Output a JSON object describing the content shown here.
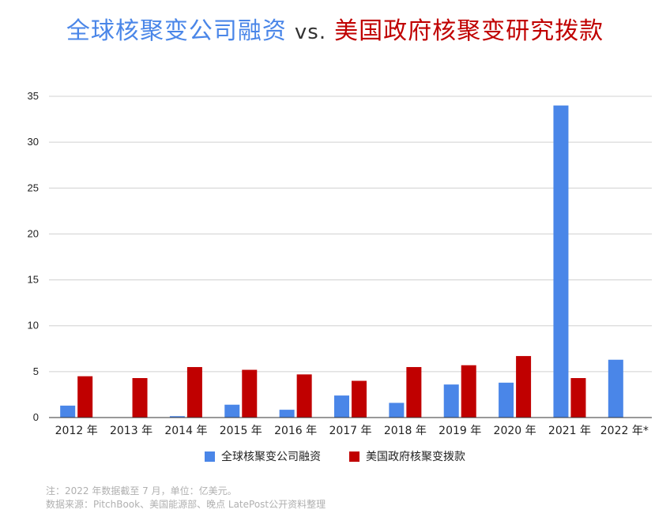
{
  "title": {
    "part1": "全球核聚变公司融资",
    "vs": "vs.",
    "part2": "美国政府核聚变研究拨款"
  },
  "colors": {
    "series1": "#4a86e8",
    "series2": "#c00000",
    "grid": "#d0d0d0",
    "axis": "#333333"
  },
  "chart_data": {
    "type": "bar",
    "title": "全球核聚变公司融资 vs. 美国政府核聚变研究拨款",
    "categories": [
      "2012 年",
      "2013 年",
      "2014 年",
      "2015 年",
      "2016 年",
      "2017 年",
      "2018 年",
      "2019 年",
      "2020 年",
      "2021 年",
      "2022 年*"
    ],
    "series": [
      {
        "name": "全球核聚变公司融资",
        "values": [
          1.3,
          0,
          0.15,
          1.4,
          0.85,
          2.4,
          1.6,
          3.6,
          3.8,
          34,
          6.3
        ]
      },
      {
        "name": "美国政府核聚变拨款",
        "values": [
          4.5,
          4.3,
          5.5,
          5.2,
          4.7,
          4.0,
          5.5,
          5.7,
          6.7,
          4.3,
          null
        ]
      }
    ],
    "ylim": [
      0,
      35
    ],
    "yticks": [
      0,
      5,
      10,
      15,
      20,
      25,
      30,
      35
    ],
    "grid": true,
    "legend": "bottom"
  },
  "legend": [
    {
      "label": "全球核聚变公司融资"
    },
    {
      "label": "美国政府核聚变拨款"
    }
  ],
  "notes": {
    "line1": "注：2022 年数据截至 7 月，单位：亿美元。",
    "line2": "数据来源：PitchBook、美国能源部、晚点 LatePost公开资料整理"
  }
}
